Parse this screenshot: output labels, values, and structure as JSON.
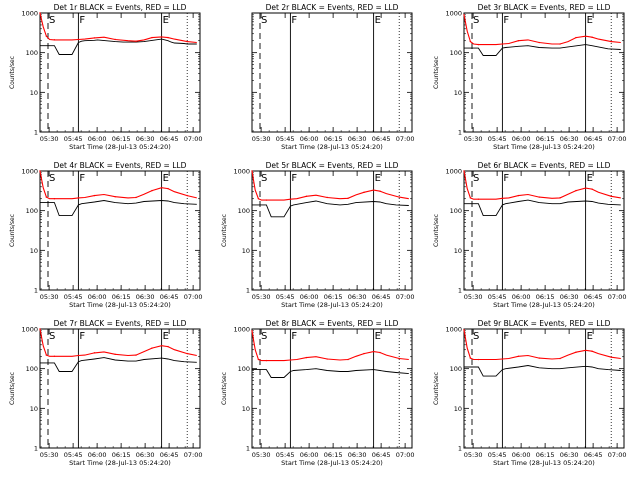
{
  "chart_data": [
    {
      "type": "line",
      "title": "Det 1r BLACK = Events, RED = LLD",
      "xlabel": "Start Time (28-Jul-13 05:24:20)",
      "ylabel": "Counts/sec",
      "xticks": [
        "05:30",
        "05:45",
        "06:00",
        "06:15",
        "06:30",
        "06:45",
        "07:00"
      ],
      "ylim": [
        1,
        1000
      ],
      "yscale": "log",
      "yticks": [
        "1",
        "10",
        "100",
        "1000"
      ],
      "series": [
        {
          "color": "#000000",
          "x": [
            0,
            5,
            9,
            12,
            20,
            24,
            26,
            28,
            34,
            36,
            47,
            52,
            60,
            65,
            76,
            80,
            82,
            84,
            90,
            92,
            98
          ],
          "y": [
            150,
            150,
            150,
            90,
            90,
            180,
            195,
            200,
            205,
            210,
            190,
            185,
            185,
            190,
            220,
            200,
            185,
            175,
            170,
            165,
            165
          ]
        },
        {
          "color": "#ff0000",
          "x": [
            0,
            2,
            4,
            6,
            9,
            20,
            24,
            28,
            34,
            40,
            47,
            55,
            60,
            65,
            70,
            76,
            80,
            84,
            92,
            98
          ],
          "y": [
            1000,
            450,
            260,
            215,
            210,
            210,
            215,
            220,
            235,
            245,
            215,
            200,
            195,
            210,
            240,
            250,
            240,
            220,
            190,
            180
          ]
        }
      ],
      "markers": [
        {
          "label": "S",
          "x": 5
        },
        {
          "label": "F",
          "x": 24
        },
        {
          "label": "E",
          "x": 76
        }
      ]
    },
    {
      "type": "line",
      "title": "Det 2r BLACK = Events, RED = LLD",
      "xlabel": "Start Time (28-Jul-13 05:24:20)",
      "ylabel": "",
      "xticks": [
        "05:30",
        "05:45",
        "06:00",
        "06:15",
        "06:30",
        "06:45",
        "07:00"
      ],
      "ylim": [
        1,
        1000
      ],
      "yscale": "log",
      "yticks": [
        "",
        "",
        "",
        ""
      ],
      "series": [],
      "markers": [
        {
          "label": "S",
          "x": 5
        },
        {
          "label": "F",
          "x": 24
        },
        {
          "label": "E",
          "x": 76
        }
      ]
    },
    {
      "type": "line",
      "title": "Det 3r BLACK = Events, RED = LLD",
      "xlabel": "Start Time (28-Jul-13 05:24:20)",
      "ylabel": "Counts/sec",
      "xticks": [
        "05:30",
        "05:45",
        "06:00",
        "06:15",
        "06:30",
        "06:45",
        "07:00"
      ],
      "ylim": [
        1,
        1000
      ],
      "yscale": "log",
      "yticks": [
        "1",
        "10",
        "100",
        "1000"
      ],
      "series": [
        {
          "color": "#000000",
          "x": [
            0,
            5,
            9,
            12,
            20,
            24,
            26,
            34,
            40,
            47,
            55,
            60,
            65,
            76,
            80,
            84,
            90,
            98
          ],
          "y": [
            130,
            130,
            130,
            85,
            85,
            130,
            135,
            145,
            150,
            135,
            130,
            130,
            140,
            160,
            150,
            140,
            125,
            120
          ]
        },
        {
          "color": "#ff0000",
          "x": [
            0,
            2,
            4,
            6,
            9,
            20,
            24,
            28,
            34,
            40,
            47,
            55,
            60,
            65,
            70,
            76,
            80,
            84,
            92,
            98
          ],
          "y": [
            900,
            350,
            190,
            165,
            160,
            160,
            165,
            170,
            200,
            210,
            180,
            165,
            165,
            190,
            240,
            260,
            245,
            220,
            190,
            180
          ]
        }
      ],
      "markers": [
        {
          "label": "S",
          "x": 5
        },
        {
          "label": "F",
          "x": 24
        },
        {
          "label": "E",
          "x": 76
        }
      ]
    },
    {
      "type": "line",
      "title": "Det 4r BLACK = Events, RED = LLD",
      "xlabel": "Start Time (28-Jul-13 05:24:20)",
      "ylabel": "Counts/sec",
      "xticks": [
        "05:30",
        "05:45",
        "06:00",
        "06:15",
        "06:30",
        "06:45",
        "07:00"
      ],
      "ylim": [
        1,
        1000
      ],
      "yscale": "log",
      "yticks": [
        "1",
        "10",
        "100",
        "1000"
      ],
      "series": [
        {
          "color": "#000000",
          "x": [
            0,
            5,
            9,
            12,
            20,
            24,
            26,
            34,
            40,
            47,
            55,
            60,
            65,
            76,
            80,
            84,
            90,
            98
          ],
          "y": [
            160,
            160,
            160,
            75,
            75,
            140,
            150,
            165,
            180,
            160,
            150,
            155,
            170,
            180,
            175,
            160,
            150,
            145
          ]
        },
        {
          "color": "#ff0000",
          "x": [
            0,
            2,
            4,
            6,
            9,
            20,
            24,
            28,
            34,
            40,
            47,
            55,
            60,
            65,
            70,
            76,
            80,
            84,
            92,
            98
          ],
          "y": [
            1000,
            380,
            220,
            200,
            200,
            200,
            210,
            215,
            240,
            255,
            225,
            210,
            215,
            260,
            320,
            380,
            360,
            300,
            240,
            210
          ]
        }
      ],
      "markers": [
        {
          "label": "S",
          "x": 5
        },
        {
          "label": "F",
          "x": 24
        },
        {
          "label": "E",
          "x": 76
        }
      ]
    },
    {
      "type": "line",
      "title": "Det 5r BLACK = Events, RED = LLD",
      "xlabel": "Start Time (28-Jul-13 05:24:20)",
      "ylabel": "Counts/sec",
      "xticks": [
        "05:30",
        "05:45",
        "06:00",
        "06:15",
        "06:30",
        "06:45",
        "07:00"
      ],
      "ylim": [
        1,
        1000
      ],
      "yscale": "log",
      "yticks": [
        "1",
        "10",
        "100",
        "1000"
      ],
      "series": [
        {
          "color": "#000000",
          "x": [
            0,
            5,
            9,
            12,
            20,
            24,
            26,
            34,
            40,
            47,
            55,
            60,
            65,
            76,
            80,
            84,
            90,
            98
          ],
          "y": [
            140,
            140,
            140,
            70,
            70,
            130,
            140,
            160,
            175,
            150,
            140,
            145,
            160,
            170,
            165,
            150,
            140,
            135
          ]
        },
        {
          "color": "#ff0000",
          "x": [
            0,
            2,
            4,
            6,
            9,
            20,
            24,
            28,
            34,
            40,
            47,
            55,
            60,
            65,
            70,
            76,
            80,
            84,
            92,
            98
          ],
          "y": [
            1000,
            330,
            200,
            185,
            185,
            185,
            195,
            200,
            230,
            245,
            215,
            200,
            205,
            250,
            290,
            330,
            310,
            270,
            220,
            200
          ]
        }
      ],
      "markers": [
        {
          "label": "S",
          "x": 5
        },
        {
          "label": "F",
          "x": 24
        },
        {
          "label": "E",
          "x": 76
        }
      ]
    },
    {
      "type": "line",
      "title": "Det 6r BLACK = Events, RED = LLD",
      "xlabel": "Start Time (28-Jul-13 05:24:20)",
      "ylabel": "Counts/sec",
      "xticks": [
        "05:30",
        "05:45",
        "06:00",
        "06:15",
        "06:30",
        "06:45",
        "07:00"
      ],
      "ylim": [
        1,
        1000
      ],
      "yscale": "log",
      "yticks": [
        "1",
        "10",
        "100",
        "1000"
      ],
      "series": [
        {
          "color": "#000000",
          "x": [
            0,
            5,
            9,
            12,
            20,
            24,
            26,
            34,
            40,
            47,
            55,
            60,
            65,
            76,
            80,
            84,
            90,
            98
          ],
          "y": [
            150,
            150,
            150,
            75,
            75,
            140,
            150,
            170,
            185,
            160,
            150,
            150,
            165,
            175,
            170,
            155,
            145,
            140
          ]
        },
        {
          "color": "#ff0000",
          "x": [
            0,
            2,
            4,
            6,
            9,
            20,
            24,
            28,
            34,
            40,
            47,
            55,
            60,
            65,
            70,
            76,
            80,
            84,
            92,
            98
          ],
          "y": [
            1000,
            360,
            210,
            195,
            195,
            195,
            205,
            210,
            240,
            255,
            220,
            205,
            210,
            260,
            320,
            370,
            350,
            290,
            230,
            210
          ]
        }
      ],
      "markers": [
        {
          "label": "S",
          "x": 5
        },
        {
          "label": "F",
          "x": 24
        },
        {
          "label": "E",
          "x": 76
        }
      ]
    },
    {
      "type": "line",
      "title": "Det 7r BLACK = Events, RED = LLD",
      "xlabel": "Start Time (28-Jul-13 05:24:20)",
      "ylabel": "Counts/sec",
      "xticks": [
        "05:30",
        "05:45",
        "06:00",
        "06:15",
        "06:30",
        "06:45",
        "07:00"
      ],
      "ylim": [
        1,
        1000
      ],
      "yscale": "log",
      "yticks": [
        "1",
        "10",
        "100",
        "1000"
      ],
      "series": [
        {
          "color": "#000000",
          "x": [
            0,
            5,
            9,
            12,
            20,
            24,
            26,
            34,
            40,
            47,
            55,
            60,
            65,
            76,
            80,
            84,
            90,
            98
          ],
          "y": [
            140,
            140,
            140,
            85,
            85,
            150,
            160,
            175,
            190,
            165,
            155,
            155,
            170,
            185,
            175,
            160,
            150,
            145
          ]
        },
        {
          "color": "#ff0000",
          "x": [
            0,
            2,
            4,
            6,
            9,
            20,
            24,
            28,
            34,
            40,
            47,
            55,
            60,
            65,
            70,
            76,
            80,
            84,
            92,
            98
          ],
          "y": [
            1000,
            380,
            220,
            205,
            205,
            205,
            215,
            220,
            250,
            265,
            230,
            215,
            220,
            270,
            330,
            380,
            360,
            300,
            240,
            215
          ]
        }
      ],
      "markers": [
        {
          "label": "S",
          "x": 5
        },
        {
          "label": "F",
          "x": 24
        },
        {
          "label": "E",
          "x": 76
        }
      ]
    },
    {
      "type": "line",
      "title": "Det 8r BLACK = Events, RED = LLD",
      "xlabel": "Start Time (28-Jul-13 05:24:20)",
      "ylabel": "Counts/sec",
      "xticks": [
        "05:30",
        "05:45",
        "06:00",
        "06:15",
        "06:30",
        "06:45",
        "07:00"
      ],
      "ylim": [
        1,
        1000
      ],
      "yscale": "log",
      "yticks": [
        "1",
        "10",
        "100",
        "1000"
      ],
      "series": [
        {
          "color": "#000000",
          "x": [
            0,
            5,
            9,
            12,
            20,
            24,
            26,
            34,
            40,
            47,
            55,
            60,
            65,
            76,
            80,
            84,
            90,
            98
          ],
          "y": [
            95,
            95,
            95,
            60,
            60,
            85,
            90,
            95,
            100,
            90,
            85,
            85,
            90,
            95,
            90,
            85,
            80,
            75
          ]
        },
        {
          "color": "#ff0000",
          "x": [
            0,
            2,
            4,
            6,
            9,
            20,
            24,
            28,
            34,
            40,
            47,
            55,
            60,
            65,
            70,
            76,
            80,
            84,
            92,
            98
          ],
          "y": [
            900,
            300,
            170,
            160,
            160,
            160,
            165,
            170,
            190,
            200,
            175,
            165,
            170,
            205,
            240,
            270,
            255,
            220,
            180,
            170
          ]
        }
      ],
      "markers": [
        {
          "label": "S",
          "x": 5
        },
        {
          "label": "F",
          "x": 24
        },
        {
          "label": "E",
          "x": 76
        }
      ]
    },
    {
      "type": "line",
      "title": "Det 9r BLACK = Events, RED = LLD",
      "xlabel": "Start Time (28-Jul-13 05:24:20)",
      "ylabel": "Counts/sec",
      "xticks": [
        "05:30",
        "05:45",
        "06:00",
        "06:15",
        "06:30",
        "06:45",
        "07:00"
      ],
      "ylim": [
        1,
        1000
      ],
      "yscale": "log",
      "yticks": [
        "1",
        "10",
        "100",
        "1000"
      ],
      "series": [
        {
          "color": "#000000",
          "x": [
            0,
            5,
            9,
            12,
            20,
            24,
            26,
            34,
            40,
            47,
            55,
            60,
            65,
            76,
            80,
            84,
            90,
            98
          ],
          "y": [
            110,
            110,
            110,
            65,
            65,
            95,
            100,
            110,
            120,
            105,
            100,
            100,
            105,
            115,
            110,
            100,
            95,
            90
          ]
        },
        {
          "color": "#ff0000",
          "x": [
            0,
            2,
            4,
            6,
            9,
            20,
            24,
            28,
            34,
            40,
            47,
            55,
            60,
            65,
            70,
            76,
            80,
            84,
            92,
            98
          ],
          "y": [
            950,
            330,
            185,
            170,
            170,
            170,
            175,
            180,
            205,
            215,
            185,
            175,
            180,
            220,
            260,
            290,
            275,
            240,
            195,
            180
          ]
        }
      ],
      "markers": [
        {
          "label": "S",
          "x": 5
        },
        {
          "label": "F",
          "x": 24
        },
        {
          "label": "E",
          "x": 76
        }
      ]
    }
  ]
}
